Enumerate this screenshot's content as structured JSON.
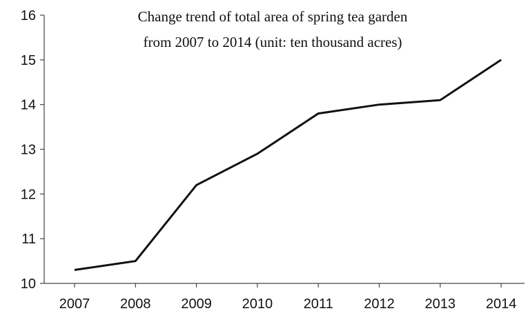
{
  "chart_data": {
    "type": "line",
    "title": "Change trend of total area of spring tea garden",
    "subtitle": "from 2007 to 2014 (unit: ten thousand acres)",
    "categories": [
      "2007",
      "2008",
      "2009",
      "2010",
      "2011",
      "2012",
      "2013",
      "2014"
    ],
    "series": [
      {
        "values": [
          10.3,
          10.5,
          12.2,
          12.9,
          13.8,
          14.0,
          14.1,
          15.0
        ]
      }
    ],
    "xlabel": "",
    "ylabel": "",
    "ylim": [
      10,
      16
    ],
    "yticks": [
      "10",
      "11",
      "12",
      "13",
      "14",
      "15",
      "16"
    ],
    "grid": false,
    "legend": "none",
    "line_color": "#111111",
    "axis_color": "#444444"
  }
}
